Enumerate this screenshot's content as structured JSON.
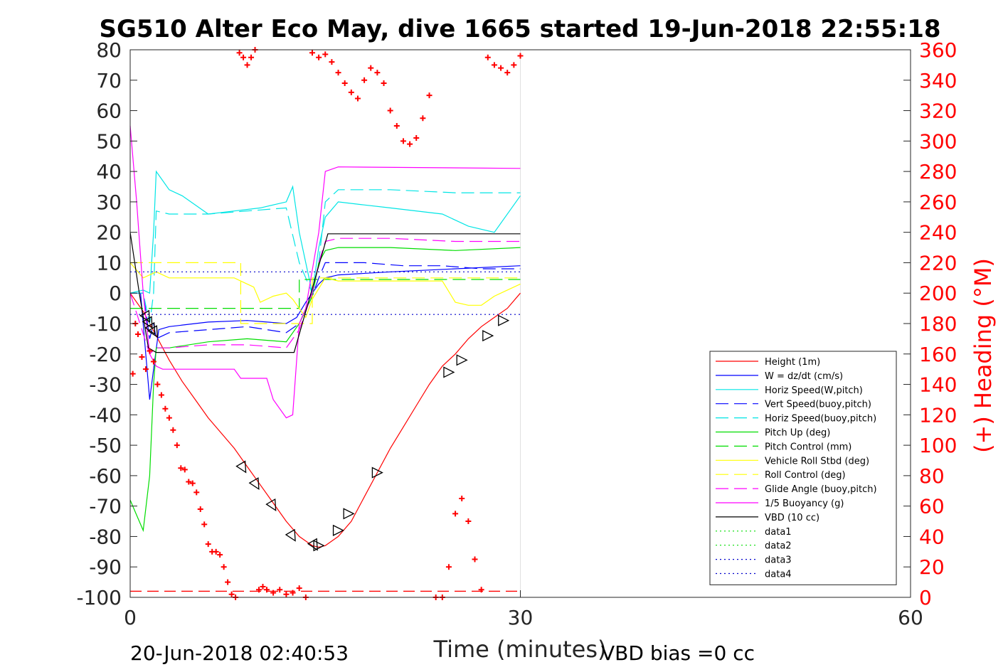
{
  "chart_data": {
    "type": "line",
    "title": "SG510 Alter Eco May, dive 1665 started 19-Jun-2018 22:55:18",
    "xlabel": "Time (minutes)",
    "ylabel_right": "(+) Heading (°M)",
    "xlim": [
      0,
      60
    ],
    "ylim": [
      -100,
      80
    ],
    "ylim_right": [
      0,
      360
    ],
    "x_ticks": [
      "0",
      "30",
      "60"
    ],
    "y_ticks": [
      "80",
      "70",
      "60",
      "50",
      "40",
      "30",
      "20",
      "10",
      "0",
      "-10",
      "-20",
      "-30",
      "-40",
      "-50",
      "-60",
      "-70",
      "-80",
      "-90",
      "-100"
    ],
    "y_ticks_right": [
      "360",
      "340",
      "320",
      "300",
      "280",
      "260",
      "240",
      "220",
      "200",
      "180",
      "160",
      "140",
      "120",
      "100",
      "80",
      "60",
      "40",
      "20",
      "0"
    ],
    "grid": "vertical line at x=30",
    "legend_position": "bottom-right",
    "footer_left": "20-Jun-2018 02:40:53",
    "footer_right": "VBD bias =0 cc",
    "series": [
      {
        "name": "Height (1m)",
        "color": "#ff0000",
        "style": "solid",
        "x": [
          0,
          1,
          2,
          3,
          4,
          5,
          6,
          7,
          8,
          9,
          10,
          11,
          12,
          13,
          14,
          14.5,
          15,
          16,
          17,
          18,
          19,
          20,
          21,
          22,
          23,
          24,
          25,
          26,
          27,
          28,
          29,
          30
        ],
        "y": [
          0,
          -6,
          -14,
          -22,
          -29,
          -35,
          -41,
          -46,
          -51,
          -57,
          -63,
          -69,
          -75,
          -80,
          -83,
          -83.5,
          -83,
          -80,
          -75,
          -67,
          -59,
          -51,
          -44,
          -37,
          -30,
          -24,
          -20,
          -15,
          -11,
          -8,
          -5,
          0
        ]
      },
      {
        "name": "W = dz/dt (cm/s)",
        "color": "#0000ff",
        "style": "solid",
        "x": [
          0,
          0.8,
          1.2,
          1.5,
          1.8,
          2.2,
          3,
          6,
          9,
          12,
          12.8,
          13.5,
          14,
          14.5,
          15,
          16,
          20,
          25,
          30
        ],
        "y": [
          0,
          0,
          -20,
          -35,
          -25,
          -12,
          -11,
          -9.5,
          -9,
          -10,
          -8,
          -3,
          0,
          3,
          5,
          6,
          7,
          8,
          9
        ]
      },
      {
        "name": "Horiz Speed(W,pitch)",
        "color": "#00e5e5",
        "style": "solid",
        "x": [
          0,
          1,
          1.5,
          1.8,
          2,
          3,
          4,
          6,
          8,
          10,
          12,
          12.5,
          13,
          13.5,
          14,
          14.5,
          15,
          16,
          18,
          20,
          24,
          26,
          28,
          30
        ],
        "y": [
          0,
          1,
          0,
          20,
          40,
          34,
          32,
          26,
          27,
          28,
          30,
          35,
          20,
          10,
          0,
          15,
          25,
          30,
          29,
          28,
          26,
          22,
          20,
          32
        ]
      },
      {
        "name": "Vert Speed(buoy,pitch)",
        "color": "#0000ff",
        "style": "dashed",
        "x": [
          0,
          1,
          1.5,
          1.8,
          2,
          3,
          6,
          9,
          12,
          13,
          14,
          14.5,
          15,
          18,
          21,
          24,
          27,
          30
        ],
        "y": [
          0,
          0,
          -15,
          -10,
          -15,
          -13,
          -12,
          -11,
          -13,
          -10,
          -1,
          5,
          10,
          10,
          9,
          9,
          8,
          8
        ]
      },
      {
        "name": "Horiz Speed(buoy,pitch)",
        "color": "#00e5e5",
        "style": "dashed",
        "x": [
          0,
          1,
          1.5,
          1.8,
          2,
          3,
          6,
          9,
          12,
          13,
          14,
          14.5,
          15,
          16,
          20,
          25,
          30
        ],
        "y": [
          0,
          0,
          -10,
          0,
          27,
          26,
          26,
          27,
          28,
          10,
          0,
          10,
          30,
          34,
          34,
          33,
          33
        ]
      },
      {
        "name": "Pitch Up (deg)",
        "color": "#00dd00",
        "style": "solid",
        "x": [
          0,
          0.5,
          1,
          1.5,
          1.8,
          2,
          3,
          6,
          9,
          12,
          13,
          14,
          14.5,
          15,
          16,
          20,
          25,
          30
        ],
        "y": [
          -68,
          -73,
          -78,
          -60,
          -30,
          -18,
          -18,
          -16,
          -15,
          -16,
          -10,
          -1,
          10,
          14,
          15,
          15,
          14,
          15
        ]
      },
      {
        "name": "Pitch Control (mm)",
        "color": "#00dd00",
        "style": "dashed",
        "x": [
          0,
          1.3,
          1.3,
          13,
          13,
          30
        ],
        "y": [
          -5,
          -5,
          -5,
          -5,
          4.5,
          4.5
        ]
      },
      {
        "name": "Vehicle Roll Stbd (deg)",
        "color": "#ffff00",
        "style": "solid",
        "x": [
          0,
          1,
          2,
          3,
          6,
          8,
          9,
          9.5,
          10,
          11,
          12,
          12.5,
          13,
          13.5,
          14,
          15,
          16,
          18,
          20,
          24,
          25,
          26,
          27,
          28,
          29,
          30
        ],
        "y": [
          10,
          5,
          7,
          5,
          5,
          5,
          3,
          2,
          -3,
          -1,
          0,
          -2,
          -5,
          -8,
          -2,
          5,
          4,
          4,
          4,
          4,
          -3,
          -4,
          -4,
          -1,
          1,
          3
        ]
      },
      {
        "name": "Roll Control (deg)",
        "color": "#ffff00",
        "style": "dashed",
        "x": [
          0,
          8.5,
          8.5,
          14,
          14,
          30
        ],
        "y": [
          10,
          10,
          -10,
          -10,
          5,
          5
        ]
      },
      {
        "name": "Glide Angle (buoy,pitch)",
        "color": "#ff00ff",
        "style": "dashed",
        "x": [
          0,
          1.5,
          2,
          3,
          6,
          9,
          12,
          13,
          14,
          14.5,
          15,
          16,
          20,
          25,
          30
        ],
        "y": [
          0,
          -20,
          -18,
          -18,
          -17,
          -17,
          -18,
          -12,
          0,
          10,
          17,
          18,
          18,
          17,
          17
        ]
      },
      {
        "name": "1/5 Buoyancy (g)",
        "color": "#ff00ff",
        "style": "solid",
        "x": [
          0,
          0.5,
          1,
          1.5,
          2,
          2.5,
          8,
          8.5,
          10.5,
          11,
          12,
          12.5,
          13,
          13.5,
          14.5,
          15,
          16,
          30
        ],
        "y": [
          55,
          30,
          0,
          -20,
          -24,
          -25,
          -25,
          -28,
          -28,
          -35,
          -41,
          -40,
          -10,
          -5,
          20,
          40,
          41.5,
          41
        ]
      },
      {
        "name": "VBD (10 cc)",
        "color": "#000000",
        "style": "solid",
        "x": [
          0,
          0.7,
          1.4,
          2,
          12.6,
          15.2,
          30
        ],
        "y": [
          20,
          0,
          -18,
          -19.5,
          -19.5,
          19.5,
          19.5
        ]
      },
      {
        "name": "data1",
        "color": "#00dd00",
        "style": "dotted",
        "x": [],
        "y": []
      },
      {
        "name": "data2",
        "color": "#00dd00",
        "style": "dotted",
        "x": [],
        "y": []
      },
      {
        "name": "data3",
        "color": "#0000cc",
        "style": "dotted",
        "x": [
          0,
          30
        ],
        "y": [
          7,
          7
        ]
      },
      {
        "name": "data4",
        "color": "#0000cc",
        "style": "dotted",
        "x": [
          0,
          30
        ],
        "y": [
          -7,
          -7
        ]
      }
    ],
    "red_dashed_line": {
      "y": -98,
      "color": "#ff0000"
    },
    "triangle_markers": {
      "down_x": [
        1.3,
        1.5,
        1.7,
        1.9,
        8.7,
        9.7,
        11,
        12.5,
        14.2
      ],
      "down_y": [
        -8,
        -10,
        -12,
        -13,
        -57.5,
        -63,
        -70,
        -80,
        -83
      ],
      "up_x": [
        14.5,
        16,
        16.8,
        19,
        24.5,
        25.5,
        27.5,
        28.7
      ],
      "up_y": [
        -83,
        -78,
        -72.5,
        -59,
        -26,
        -22,
        -14,
        -9
      ]
    },
    "heading_points": {
      "color": "#ff0000",
      "t": [
        0.2,
        0.4,
        0.6,
        0.9,
        1.2,
        1.5,
        1.8,
        2.1,
        2.4,
        2.7,
        3.0,
        3.3,
        3.6,
        3.9,
        4.2,
        4.5,
        4.8,
        5.1,
        5.4,
        5.7,
        6.0,
        6.3,
        6.6,
        6.9,
        7.2,
        7.5,
        7.8,
        8.1,
        8.4,
        8.7,
        9.0,
        9.3,
        9.6,
        9.9,
        10.2,
        10.5,
        11.0,
        11.5,
        12.0,
        12.5,
        13.0,
        13.5,
        14.0,
        14.5,
        15.0,
        15.5,
        16.0,
        16.5,
        17.0,
        17.5,
        18.0,
        18.5,
        19.0,
        19.5,
        20.0,
        20.5,
        21.0,
        21.5,
        22.0,
        22.5,
        23.0,
        23.5,
        24.0,
        24.5,
        25.0,
        25.5,
        26.0,
        26.5,
        27.0,
        27.5,
        28.0,
        28.5,
        29.0,
        29.5,
        30.0
      ],
      "heading": [
        147,
        180,
        173,
        158,
        150,
        162,
        155,
        140,
        133,
        124,
        118,
        110,
        100,
        85,
        84,
        76,
        75,
        69,
        58,
        48,
        35,
        30,
        30,
        28,
        20,
        10,
        2,
        0,
        358,
        355,
        350,
        355,
        360,
        5,
        7,
        5,
        3,
        5,
        2,
        3,
        6,
        0,
        358,
        355,
        357,
        352,
        345,
        338,
        332,
        328,
        340,
        348,
        345,
        338,
        320,
        310,
        300,
        298,
        302,
        315,
        330,
        0,
        0,
        20,
        55,
        65,
        50,
        25,
        5,
        355,
        350,
        348,
        345,
        350,
        356
      ]
    }
  },
  "legend": {
    "items": [
      {
        "label": "Height (1m)",
        "color": "#ff0000",
        "dash": "solid"
      },
      {
        "label": "W = dz/dt (cm/s)",
        "color": "#0000ff",
        "dash": "solid"
      },
      {
        "label": "Horiz Speed(W,pitch)",
        "color": "#00e5e5",
        "dash": "solid"
      },
      {
        "label": "Vert Speed(buoy,pitch)",
        "color": "#0000ff",
        "dash": "dashed"
      },
      {
        "label": "Horiz Speed(buoy,pitch)",
        "color": "#00e5e5",
        "dash": "dashed"
      },
      {
        "label": "Pitch Up (deg)",
        "color": "#00dd00",
        "dash": "solid"
      },
      {
        "label": "Pitch Control (mm)",
        "color": "#00dd00",
        "dash": "dashed"
      },
      {
        "label": "Vehicle Roll Stbd (deg)",
        "color": "#ffff00",
        "dash": "solid"
      },
      {
        "label": "Roll Control (deg)",
        "color": "#ffff00",
        "dash": "dashed"
      },
      {
        "label": "Glide Angle (buoy,pitch)",
        "color": "#ff00ff",
        "dash": "dashed"
      },
      {
        "label": "1/5 Buoyancy (g)",
        "color": "#ff00ff",
        "dash": "solid"
      },
      {
        "label": "VBD (10 cc)",
        "color": "#000000",
        "dash": "solid"
      },
      {
        "label": "data1",
        "color": "#00dd00",
        "dash": "dotted"
      },
      {
        "label": "data2",
        "color": "#00dd00",
        "dash": "dotted"
      },
      {
        "label": "data3",
        "color": "#0000cc",
        "dash": "dotted"
      },
      {
        "label": "data4",
        "color": "#0000cc",
        "dash": "dotted"
      }
    ]
  }
}
